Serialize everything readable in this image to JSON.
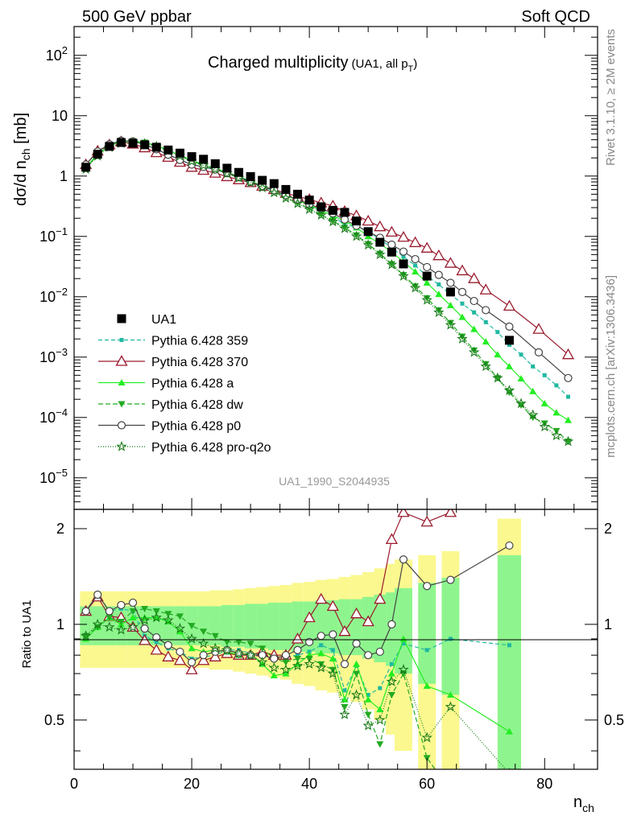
{
  "header": {
    "left": "500 GeV ppbar",
    "right": "Soft QCD",
    "side_top": "Rivet 3.1.10, ≥ 2M events",
    "side_bottom": "mcplots.cern.ch [arXiv:1306.3436]",
    "analysis_id": "UA1_1990_S2044935"
  },
  "main_plot": {
    "title": "Charged multiplicity",
    "title_small": "(UA1, all p",
    "title_small_sub": "T",
    "title_small_end": ")",
    "ylabel": "dσ/d n",
    "ylabel_sub": "ch",
    "ylabel_unit": " [mb]"
  },
  "ratio_plot": {
    "ylabel": "Ratio to UA1"
  },
  "xaxis": {
    "label": "n",
    "label_sub": "ch"
  },
  "legend": [
    {
      "label": "UA1"
    },
    {
      "label": "Pythia 6.428 359"
    },
    {
      "label": "Pythia 6.428 370"
    },
    {
      "label": "Pythia 6.428 a"
    },
    {
      "label": "Pythia 6.428 dw"
    },
    {
      "label": "Pythia 6.428 p0"
    },
    {
      "label": "Pythia 6.428 pro-q2o"
    }
  ],
  "chart_data": {
    "type": "scatter",
    "title": "Charged multiplicity (UA1, all pT)",
    "xlabel": "n_ch",
    "ylabel": "dσ/d n_ch [mb]",
    "ratio_ylabel": "Ratio to UA1",
    "xlim": [
      0,
      89
    ],
    "ylim": [
      3e-06,
      300
    ],
    "yscale": "log",
    "ratio_ylim": [
      0.35,
      2.3
    ],
    "x_ticks": [
      0,
      20,
      40,
      60,
      80
    ],
    "y_ticks": [
      "10^-5",
      "10^-4",
      "10^-3",
      "10^-2",
      "10^-1",
      "1",
      "10",
      "10^2"
    ],
    "ratio_ticks": [
      0.5,
      1,
      2
    ],
    "legend_position": "lower-left",
    "data": {
      "name": "UA1",
      "x": [
        2,
        4,
        6,
        8,
        10,
        12,
        14,
        16,
        18,
        20,
        22,
        24,
        26,
        28,
        30,
        32,
        34,
        36,
        38,
        40,
        42,
        44,
        46,
        48,
        50,
        52,
        54,
        56,
        60,
        64,
        74
      ],
      "y": [
        1.4,
        2.3,
        3.1,
        3.6,
        3.5,
        3.3,
        3.0,
        2.7,
        2.4,
        2.1,
        1.9,
        1.6,
        1.35,
        1.15,
        0.98,
        0.85,
        0.75,
        0.6,
        0.5,
        0.4,
        0.31,
        0.27,
        0.25,
        0.18,
        0.12,
        0.08,
        0.055,
        0.035,
        0.022,
        0.012,
        0.0019
      ],
      "band_inner": [
        0.14,
        0.14,
        0.14,
        0.14,
        0.14,
        0.14,
        0.14,
        0.14,
        0.14,
        0.14,
        0.14,
        0.14,
        0.15,
        0.15,
        0.16,
        0.16,
        0.17,
        0.17,
        0.18,
        0.18,
        0.19,
        0.19,
        0.2,
        0.2,
        0.22,
        0.24,
        0.26,
        0.3,
        0.35,
        0.4,
        0.65
      ],
      "band_outer": [
        0.27,
        0.27,
        0.27,
        0.27,
        0.27,
        0.27,
        0.27,
        0.27,
        0.27,
        0.27,
        0.27,
        0.28,
        0.28,
        0.29,
        0.3,
        0.31,
        0.32,
        0.33,
        0.35,
        0.36,
        0.38,
        0.39,
        0.41,
        0.43,
        0.46,
        0.5,
        0.55,
        0.6,
        0.65,
        0.7,
        1.15
      ]
    },
    "series": [
      {
        "name": "Pythia 6.428 359",
        "color": "#20b8a0",
        "dash": "5,3",
        "marker": "square-small",
        "x": [
          2,
          4,
          6,
          8,
          10,
          12,
          14,
          16,
          18,
          20,
          22,
          24,
          26,
          28,
          30,
          32,
          34,
          36,
          38,
          40,
          42,
          44,
          46,
          48,
          50,
          52,
          54,
          56,
          58,
          60,
          62,
          64,
          66,
          68,
          70,
          72,
          74,
          76,
          78,
          80,
          82,
          84
        ],
        "y": [
          1.55,
          2.6,
          3.45,
          3.9,
          3.85,
          3.35,
          2.78,
          2.26,
          1.85,
          1.56,
          1.42,
          1.28,
          1.12,
          0.95,
          0.78,
          0.66,
          0.57,
          0.47,
          0.4,
          0.32,
          0.27,
          0.22,
          0.155,
          0.145,
          0.12,
          0.09,
          0.065,
          0.046,
          0.033,
          0.022,
          0.016,
          0.011,
          0.0077,
          0.0055,
          0.0038,
          0.0026,
          0.0016,
          0.0011,
          0.0007,
          0.0005,
          0.00034,
          0.00022
        ],
        "ratio_x": [
          2,
          4,
          6,
          8,
          10,
          12,
          14,
          16,
          18,
          20,
          22,
          24,
          26,
          28,
          30,
          32,
          34,
          36,
          38,
          40,
          42,
          44,
          46,
          48,
          50,
          52,
          54,
          56,
          60,
          64,
          74
        ],
        "ratio_y": [
          1.1,
          1.25,
          1.1,
          1.12,
          1.1,
          0.92,
          0.88,
          0.84,
          0.82,
          0.78,
          0.79,
          0.8,
          0.83,
          0.83,
          0.81,
          0.8,
          0.77,
          0.79,
          0.8,
          0.82,
          0.86,
          0.83,
          0.62,
          0.74,
          0.6,
          0.63,
          0.75,
          0.87,
          0.83,
          0.9,
          0.86
        ]
      },
      {
        "name": "Pythia 6.428 370",
        "color": "#9a1b2e",
        "dash": "",
        "marker": "triangle-open",
        "x": [
          2,
          4,
          6,
          8,
          10,
          12,
          14,
          16,
          18,
          20,
          22,
          24,
          26,
          28,
          30,
          32,
          34,
          36,
          38,
          40,
          42,
          44,
          46,
          48,
          50,
          52,
          54,
          56,
          58,
          60,
          62,
          64,
          66,
          68,
          70,
          74,
          79,
          84
        ],
        "y": [
          1.55,
          2.6,
          3.3,
          3.7,
          3.4,
          2.95,
          2.45,
          2.05,
          1.7,
          1.4,
          1.25,
          1.12,
          0.98,
          0.87,
          0.78,
          0.68,
          0.6,
          0.52,
          0.46,
          0.41,
          0.36,
          0.32,
          0.26,
          0.22,
          0.18,
          0.145,
          0.118,
          0.097,
          0.079,
          0.064,
          0.048,
          0.036,
          0.027,
          0.02,
          0.013,
          0.007,
          0.0029,
          0.0011
        ],
        "ratio_x": [
          2,
          4,
          6,
          8,
          10,
          12,
          14,
          16,
          18,
          20,
          22,
          24,
          26,
          28,
          30,
          32,
          34,
          36,
          38,
          40,
          42,
          44,
          46,
          48,
          50,
          52,
          54,
          56,
          60,
          64
        ],
        "ratio_y": [
          1.1,
          1.22,
          1.06,
          1.05,
          0.98,
          0.89,
          0.83,
          0.79,
          0.77,
          0.72,
          0.77,
          0.79,
          0.81,
          0.8,
          0.8,
          0.82,
          0.8,
          0.8,
          0.9,
          1.05,
          1.2,
          1.14,
          0.95,
          1.08,
          1.02,
          1.2,
          1.85,
          2.25,
          2.1,
          2.25
        ]
      },
      {
        "name": "Pythia 6.428 a",
        "color": "#22ee22",
        "dash": "",
        "marker": "triangle-up",
        "x": [
          2,
          4,
          6,
          8,
          10,
          12,
          14,
          16,
          18,
          20,
          22,
          24,
          26,
          28,
          30,
          32,
          34,
          36,
          38,
          40,
          42,
          44,
          46,
          48,
          50,
          52,
          54,
          56,
          58,
          60,
          62,
          64,
          66,
          68,
          70,
          72,
          74,
          76,
          78,
          80,
          82,
          84
        ],
        "y": [
          1.4,
          2.3,
          3.2,
          3.7,
          3.75,
          3.6,
          3.2,
          2.7,
          2.2,
          1.72,
          1.52,
          1.34,
          1.15,
          0.98,
          0.83,
          0.69,
          0.58,
          0.48,
          0.4,
          0.33,
          0.27,
          0.22,
          0.18,
          0.14,
          0.1,
          0.076,
          0.055,
          0.038,
          0.026,
          0.017,
          0.011,
          0.0072,
          0.0046,
          0.0029,
          0.0018,
          0.0011,
          0.0007,
          0.00044,
          0.00027,
          0.00017,
          0.00012,
          9e-05
        ],
        "ratio_x": [
          2,
          4,
          6,
          8,
          10,
          12,
          14,
          16,
          18,
          20,
          22,
          24,
          26,
          28,
          30,
          32,
          34,
          36,
          38,
          40,
          42,
          44,
          46,
          48,
          50,
          52,
          54,
          56,
          60,
          64,
          74
        ],
        "ratio_y": [
          0.9,
          0.98,
          1.05,
          1.0,
          1.05,
          1.05,
          1.05,
          1.02,
          0.95,
          0.84,
          0.82,
          0.83,
          0.82,
          0.8,
          0.81,
          0.75,
          0.69,
          0.7,
          0.75,
          0.8,
          0.81,
          0.78,
          0.58,
          0.75,
          0.58,
          0.54,
          0.7,
          0.9,
          0.64,
          0.6,
          0.46
        ]
      },
      {
        "name": "Pythia 6.428 dw",
        "color": "#22aa22",
        "dash": "6,3",
        "marker": "triangle-down",
        "x": [
          2,
          4,
          6,
          8,
          10,
          12,
          14,
          16,
          18,
          20,
          22,
          24,
          26,
          28,
          30,
          32,
          34,
          36,
          38,
          40,
          42,
          44,
          46,
          48,
          50,
          52,
          54,
          56,
          58,
          60,
          62,
          64,
          66,
          68,
          70,
          72,
          74,
          76,
          78,
          80,
          82,
          84
        ],
        "y": [
          1.35,
          2.25,
          3.2,
          3.7,
          3.8,
          3.6,
          3.2,
          2.7,
          2.22,
          1.82,
          1.55,
          1.35,
          1.15,
          0.98,
          0.82,
          0.67,
          0.55,
          0.44,
          0.36,
          0.29,
          0.23,
          0.18,
          0.14,
          0.105,
          0.075,
          0.052,
          0.035,
          0.023,
          0.015,
          0.0095,
          0.006,
          0.0037,
          0.0022,
          0.0013,
          0.00077,
          0.00045,
          0.00026,
          0.00016,
          0.0001,
          8e-05,
          6e-05,
          4e-05
        ],
        "ratio_x": [
          2,
          4,
          6,
          8,
          10,
          12,
          14,
          16,
          18,
          20,
          22,
          24,
          26,
          28,
          30,
          32,
          34,
          36,
          38,
          40,
          42,
          44,
          46,
          48,
          50,
          52,
          54,
          56,
          60,
          64
        ],
        "ratio_y": [
          0.92,
          0.98,
          1.05,
          1.02,
          1.1,
          1.12,
          1.1,
          1.08,
          1.06,
          0.99,
          0.95,
          0.92,
          0.88,
          0.88,
          0.87,
          0.84,
          0.78,
          0.76,
          0.78,
          0.78,
          0.75,
          0.72,
          0.55,
          0.7,
          0.52,
          0.42,
          0.6,
          0.7,
          0.38,
          0.3
        ]
      },
      {
        "name": "Pythia 6.428 p0",
        "color": "#444444",
        "dash": "",
        "marker": "circle-open",
        "x": [
          2,
          4,
          6,
          8,
          10,
          12,
          14,
          16,
          18,
          20,
          22,
          24,
          26,
          28,
          30,
          32,
          34,
          36,
          38,
          40,
          42,
          44,
          46,
          48,
          50,
          52,
          54,
          56,
          58,
          60,
          62,
          64,
          66,
          68,
          70,
          74,
          79,
          84
        ],
        "y": [
          1.55,
          2.55,
          3.35,
          3.85,
          3.75,
          3.35,
          2.78,
          2.26,
          1.85,
          1.55,
          1.42,
          1.28,
          1.12,
          0.95,
          0.8,
          0.68,
          0.58,
          0.48,
          0.41,
          0.34,
          0.29,
          0.24,
          0.19,
          0.15,
          0.12,
          0.095,
          0.073,
          0.056,
          0.042,
          0.031,
          0.023,
          0.017,
          0.012,
          0.0085,
          0.006,
          0.0032,
          0.0012,
          0.00045
        ],
        "ratio_x": [
          2,
          4,
          6,
          8,
          10,
          12,
          14,
          16,
          18,
          20,
          22,
          24,
          26,
          28,
          30,
          32,
          34,
          36,
          38,
          40,
          42,
          44,
          46,
          48,
          50,
          52,
          54,
          56,
          60,
          64,
          74
        ],
        "ratio_y": [
          1.1,
          1.24,
          1.1,
          1.15,
          1.17,
          0.97,
          0.91,
          0.86,
          0.82,
          0.76,
          0.8,
          0.82,
          0.83,
          0.81,
          0.8,
          0.8,
          0.78,
          0.8,
          0.83,
          0.88,
          0.92,
          0.93,
          0.75,
          0.87,
          0.8,
          0.82,
          1.0,
          1.6,
          1.32,
          1.38,
          1.77
        ]
      },
      {
        "name": "Pythia 6.428 pro-q2o",
        "color": "#1a7a1a",
        "dash": "1,2",
        "marker": "star-open",
        "x": [
          2,
          4,
          6,
          8,
          10,
          12,
          14,
          16,
          18,
          20,
          22,
          24,
          26,
          28,
          30,
          32,
          34,
          36,
          38,
          40,
          42,
          44,
          46,
          48,
          50,
          52,
          54,
          56,
          58,
          60,
          62,
          64,
          66,
          68,
          70,
          72,
          74,
          76,
          78,
          80,
          82,
          84
        ],
        "y": [
          1.3,
          2.15,
          3.0,
          3.5,
          3.6,
          3.45,
          3.1,
          2.6,
          2.15,
          1.75,
          1.5,
          1.3,
          1.1,
          0.93,
          0.78,
          0.64,
          0.53,
          0.43,
          0.35,
          0.28,
          0.225,
          0.175,
          0.135,
          0.1,
          0.072,
          0.05,
          0.034,
          0.022,
          0.014,
          0.0088,
          0.0055,
          0.0034,
          0.002,
          0.0012,
          0.0007,
          0.00045,
          0.00028,
          0.00017,
          0.00011,
          7e-05,
          5e-05,
          4e-05
        ],
        "ratio_x": [
          2,
          4,
          6,
          8,
          10,
          12,
          14,
          16,
          18,
          20,
          22,
          24,
          26,
          28,
          30,
          32,
          34,
          36,
          38,
          40,
          42,
          44,
          46,
          48,
          50,
          52,
          54,
          56,
          60,
          64,
          74
        ],
        "ratio_y": [
          0.92,
          1.0,
          0.98,
          0.96,
          0.98,
          1.03,
          1.05,
          1.03,
          0.97,
          0.9,
          0.87,
          0.84,
          0.83,
          0.81,
          0.8,
          0.76,
          0.73,
          0.72,
          0.74,
          0.75,
          0.73,
          0.7,
          0.52,
          0.6,
          0.48,
          0.5,
          0.66,
          0.72,
          0.44,
          0.55,
          0.34
        ]
      }
    ]
  }
}
